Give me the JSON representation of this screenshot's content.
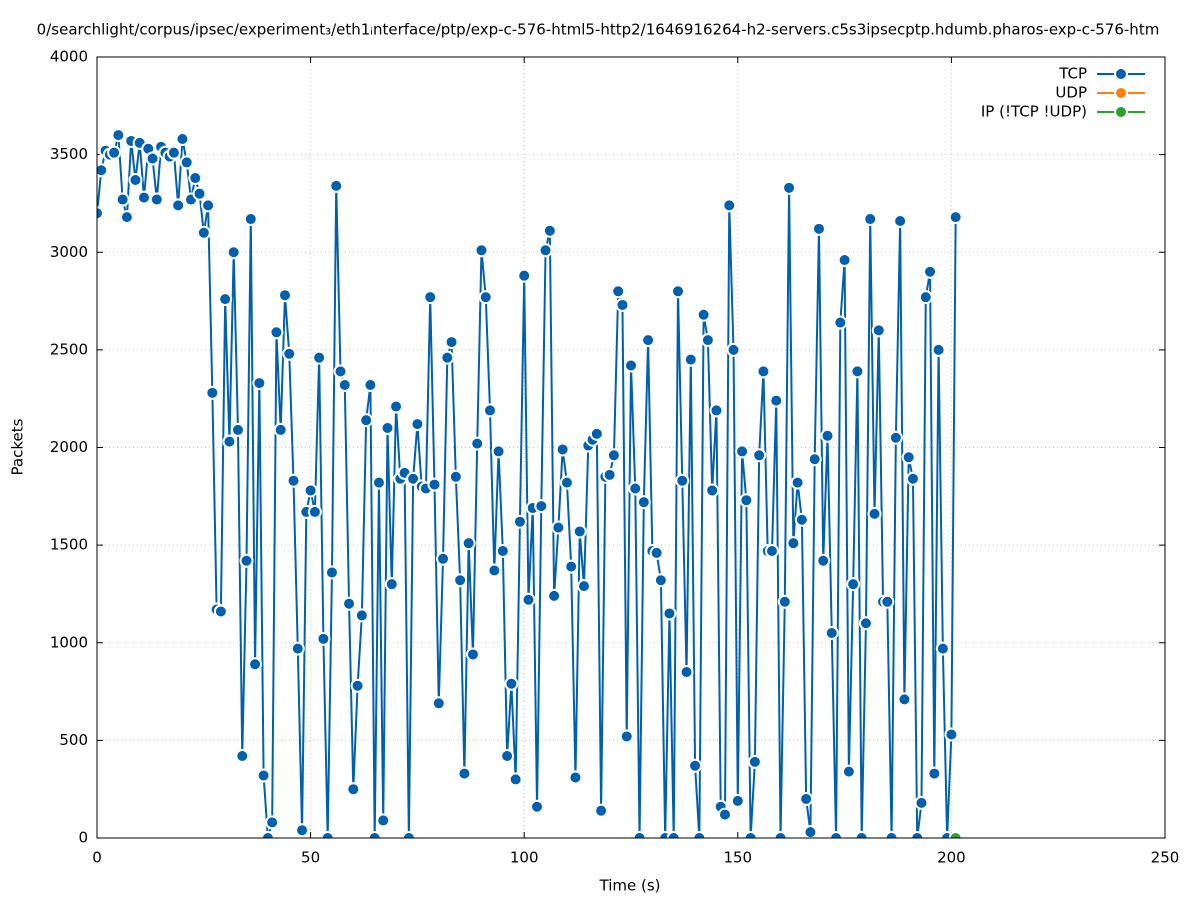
{
  "chart_data": {
    "type": "line",
    "title": "0/searchlight/corpus/ipsec/experiment₃/eth1ᵢnterface/ptp/exp-c-576-html5-http2/1646916264-h2-servers.c5s3ipsecptp.hdumb.pharos-exp-c-576-htm",
    "x_label": "Time (s)",
    "y_label": "Packets",
    "xlim": [
      0,
      250
    ],
    "xticks": [
      0,
      50,
      100,
      150,
      200,
      250
    ],
    "ylim": [
      0,
      4000
    ],
    "yticks": [
      0,
      500,
      1000,
      1500,
      2000,
      2500,
      3000,
      3500,
      4000
    ],
    "grid": true,
    "legend": "top-right",
    "series": [
      {
        "name": "TCP",
        "color": "#0060ad",
        "x": [
          0,
          1,
          2,
          3,
          4,
          5,
          6,
          7,
          8,
          9,
          10,
          11,
          12,
          13,
          14,
          15,
          16,
          17,
          18,
          19,
          20,
          21,
          22,
          23,
          24,
          25,
          26,
          27,
          28,
          29,
          30,
          31,
          32,
          33,
          34,
          35,
          36,
          37,
          38,
          39,
          40,
          41,
          42,
          43,
          44,
          45,
          46,
          47,
          48,
          49,
          50,
          51,
          52,
          53,
          54,
          55,
          56,
          57,
          58,
          59,
          60,
          61,
          62,
          63,
          64,
          65,
          66,
          67,
          68,
          69,
          70,
          71,
          72,
          73,
          74,
          75,
          76,
          77,
          78,
          79,
          80,
          81,
          82,
          83,
          84,
          85,
          86,
          87,
          88,
          89,
          90,
          91,
          92,
          93,
          94,
          95,
          96,
          97,
          98,
          99,
          100,
          101,
          102,
          103,
          104,
          105,
          106,
          107,
          108,
          109,
          110,
          111,
          112,
          113,
          114,
          115,
          116,
          117,
          118,
          119,
          120,
          121,
          122,
          123,
          124,
          125,
          126,
          127,
          128,
          129,
          130,
          131,
          132,
          133,
          134,
          135,
          136,
          137,
          138,
          139,
          140,
          141,
          142,
          143,
          144,
          145,
          146,
          147,
          148,
          149,
          150,
          151,
          152,
          153,
          154,
          155,
          156,
          157,
          158,
          159,
          160,
          161,
          162,
          163,
          164,
          165,
          166,
          167,
          168,
          169,
          170,
          171,
          172,
          173,
          174,
          175,
          176,
          177,
          178,
          179,
          180,
          181,
          182,
          183,
          184,
          185,
          186,
          187,
          188,
          189,
          190,
          191,
          192,
          193,
          194,
          195,
          196,
          197,
          198,
          199,
          200,
          201
        ],
        "values": [
          3200,
          3420,
          3520,
          3500,
          3510,
          3600,
          3270,
          3180,
          3570,
          3370,
          3560,
          3280,
          3530,
          3480,
          3270,
          3540,
          3510,
          3490,
          3510,
          3240,
          3580,
          3460,
          3270,
          3380,
          3300,
          3100,
          3240,
          2280,
          1170,
          1160,
          2760,
          2030,
          3000,
          2090,
          420,
          1420,
          3170,
          890,
          2330,
          320,
          0,
          80,
          2590,
          2090,
          2780,
          2480,
          1830,
          970,
          40,
          1670,
          1780,
          1670,
          2460,
          1020,
          0,
          1360,
          3340,
          2390,
          2320,
          1200,
          250,
          780,
          1140,
          2140,
          2320,
          0,
          1820,
          90,
          2100,
          1300,
          2210,
          1840,
          1870,
          0,
          1840,
          2120,
          1800,
          1790,
          2770,
          1810,
          690,
          1430,
          2460,
          2540,
          1850,
          1320,
          330,
          1510,
          940,
          2020,
          3010,
          2770,
          2190,
          1370,
          1980,
          1470,
          420,
          790,
          300,
          1620,
          2880,
          1220,
          1690,
          160,
          1700,
          3010,
          3110,
          1240,
          1590,
          1990,
          1820,
          1390,
          310,
          1570,
          1290,
          2010,
          2040,
          2070,
          140,
          1850,
          1860,
          1960,
          2800,
          2730,
          520,
          2420,
          1790,
          0,
          1720,
          2550,
          1470,
          1460,
          1320,
          0,
          1150,
          0,
          2800,
          1830,
          850,
          2450,
          370,
          0,
          2680,
          2550,
          1780,
          2190,
          160,
          120,
          3240,
          2500,
          190,
          1980,
          1730,
          0,
          390,
          1960,
          2390,
          1470,
          1470,
          2240,
          0,
          1210,
          3330,
          1510,
          1820,
          1630,
          200,
          30,
          1940,
          3120,
          1420,
          2060,
          1050,
          0,
          2640,
          2960,
          340,
          1300,
          2390,
          0,
          1100,
          3170,
          1660,
          2600,
          1210,
          1210,
          0,
          2050,
          3160,
          710,
          1950,
          1840,
          0,
          180,
          2770,
          2900,
          330,
          2500,
          970,
          0,
          530,
          3180
        ]
      },
      {
        "name": "UDP",
        "color": "#ff7f0e",
        "x": [],
        "values": []
      },
      {
        "name": "IP (!TCP  !UDP)",
        "color": "#2ca02c",
        "x": [
          201
        ],
        "values": [
          0
        ]
      }
    ]
  }
}
